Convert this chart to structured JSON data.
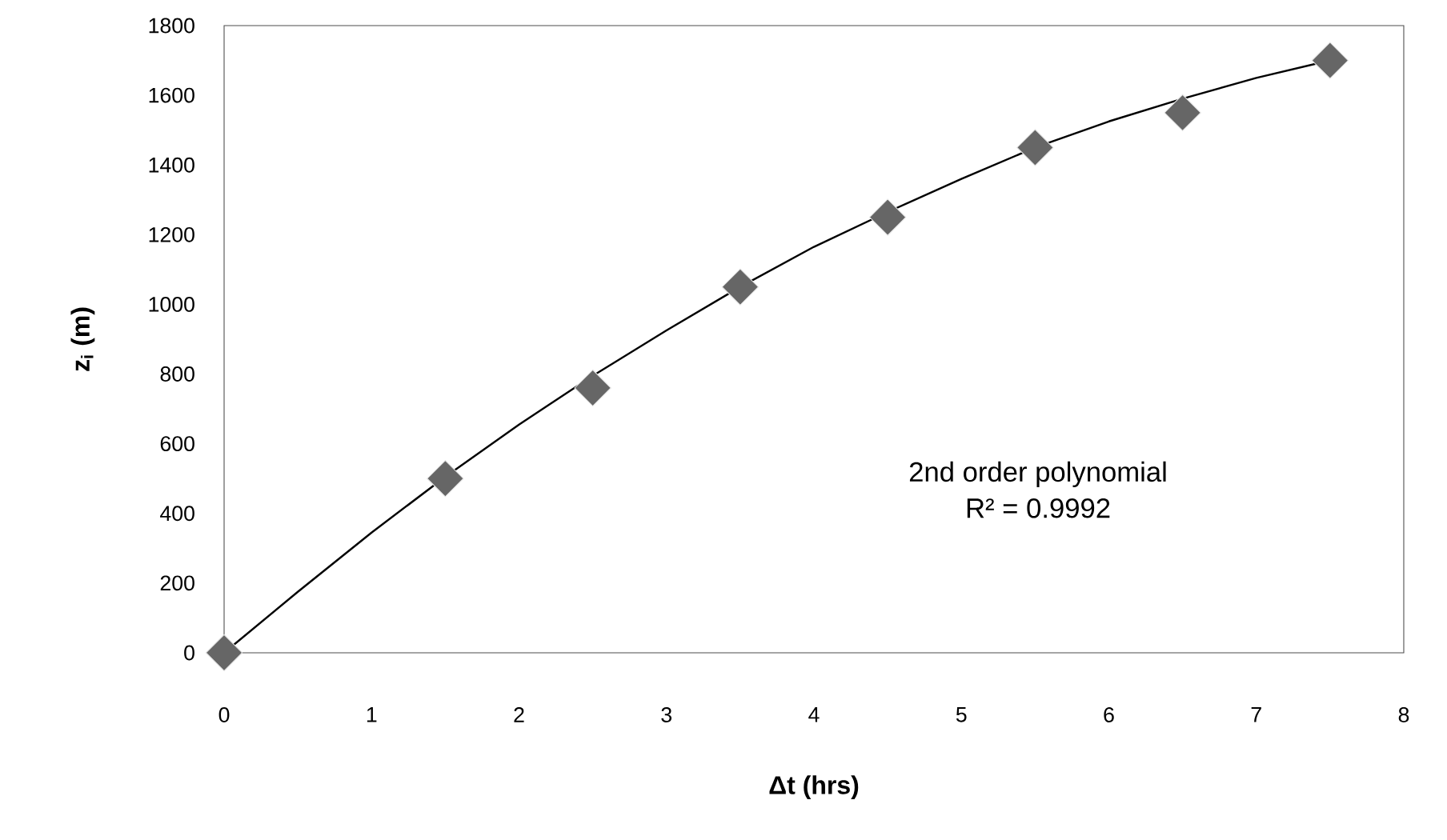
{
  "chart_data": {
    "type": "scatter",
    "xlabel": "**Δt (hrs)**",
    "ylabel": "**z$_{i}$ (m)**",
    "xlim": [
      0,
      8
    ],
    "xticks": [
      0,
      1,
      2,
      3,
      4,
      5,
      6,
      7,
      8
    ],
    "ylim": [
      0,
      1800
    ],
    "yticks": [
      0,
      200,
      400,
      600,
      800,
      1000,
      1200,
      1400,
      1600,
      1800
    ],
    "grid": false,
    "marker": "diamond",
    "annotations": [
      "2nd order polynomial",
      "R² = 0.9992"
    ],
    "series": [
      {
        "color": "#666666",
        "x": [
          0,
          1.5,
          2.5,
          3.5,
          4.5,
          5.5,
          6.5,
          7.5
        ],
        "values": [
          0,
          500,
          760,
          1050,
          1250,
          1450,
          1550,
          1700
        ]
      },
      {
        "type": "line",
        "color": "#000000",
        "marker": "none",
        "x": [
          0,
          0.5,
          1,
          1.5,
          2,
          2.5,
          3,
          3.5,
          4,
          4.5,
          5,
          5.5,
          6,
          6.5,
          7,
          7.5
        ],
        "values": [
          0,
          175,
          345,
          505,
          655,
          795,
          925,
          1050,
          1165,
          1265,
          1360,
          1450,
          1525,
          1590,
          1650,
          1700
        ]
      }
    ]
  }
}
